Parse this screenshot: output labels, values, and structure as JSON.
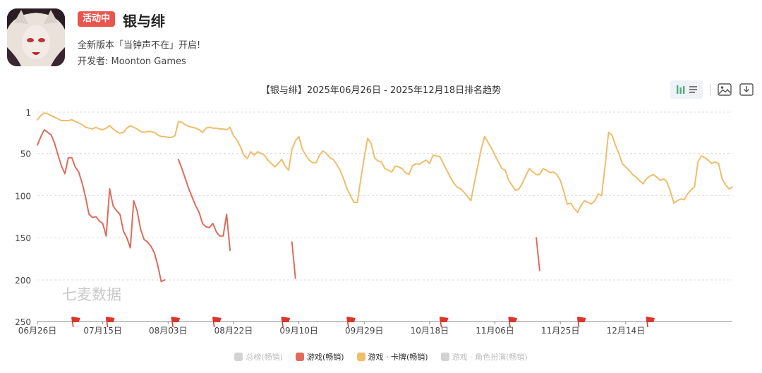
{
  "app": {
    "badge": "活动中",
    "name": "银与绯",
    "subtitle": "全新版本「当钟声不在」开启!",
    "developer": "开发者: Moonton Games"
  },
  "colors": {
    "red": "#e06b5c",
    "yellow": "#f0bd6a",
    "gray": "#d3d3d3",
    "badge": "#e8554e",
    "flag": "#d9362c"
  },
  "toolbar": {
    "bar_icon": "bar-chart-icon",
    "image_icon": "image-icon",
    "download_icon": "download-icon"
  },
  "watermark": "七麦数据",
  "chart_data": {
    "type": "line",
    "title": "【银与绯】2025年06月26日 - 2025年12月18日排名趋势",
    "y_ticks": [
      "1",
      "50",
      "100",
      "150",
      "200",
      "250"
    ],
    "y_reversed": true,
    "ylim": [
      1,
      250
    ],
    "x_labels": [
      "06月26日",
      "07月15日",
      "08月03日",
      "08月22日",
      "09月10日",
      "09月29日",
      "10月18日",
      "11月06日",
      "11月25日",
      "12月14日"
    ],
    "x_start": "2025-06-26",
    "x_end": "2025-12-18",
    "flag_days": [
      10,
      20,
      39,
      51,
      71,
      90,
      117,
      137,
      157,
      177
    ],
    "legend": [
      {
        "name": "总榜(畅销)",
        "color": "#d3d3d3",
        "active": false
      },
      {
        "name": "游戏(畅销)",
        "color": "#e06b5c",
        "active": true
      },
      {
        "name": "游戏 · 卡牌(畅销)",
        "color": "#f0bd6a",
        "active": true
      },
      {
        "name": "游戏 · 角色扮演(畅销)",
        "color": "#d3d3d3",
        "active": false
      }
    ],
    "series": [
      {
        "name": "游戏(畅销)",
        "color": "#e06b5c",
        "segments": [
          [
            [
              0,
              40
            ],
            [
              1,
              30
            ],
            [
              2,
              22
            ],
            [
              3,
              25
            ],
            [
              4,
              28
            ],
            [
              5,
              38
            ],
            [
              6,
              52
            ],
            [
              7,
              65
            ],
            [
              8,
              74
            ],
            [
              9,
              55
            ],
            [
              10,
              55
            ],
            [
              11,
              66
            ],
            [
              12,
              72
            ],
            [
              13,
              85
            ],
            [
              14,
              102
            ],
            [
              15,
              122
            ],
            [
              16,
              126
            ],
            [
              17,
              125
            ],
            [
              18,
              130
            ],
            [
              19,
              133
            ],
            [
              20,
              148
            ],
            [
              21,
              92
            ],
            [
              22,
              112
            ],
            [
              23,
              118
            ],
            [
              24,
              122
            ],
            [
              25,
              142
            ],
            [
              26,
              150
            ],
            [
              27,
              162
            ],
            [
              28,
              106
            ],
            [
              29,
              118
            ],
            [
              30,
              140
            ],
            [
              31,
              152
            ],
            [
              32,
              155
            ],
            [
              33,
              160
            ],
            [
              34,
              168
            ],
            [
              35,
              183
            ],
            [
              36,
              202
            ],
            [
              37,
              200
            ]
          ],
          [
            [
              41,
              57
            ],
            [
              42,
              68
            ],
            [
              43,
              80
            ],
            [
              44,
              92
            ],
            [
              45,
              102
            ],
            [
              46,
              112
            ],
            [
              47,
              120
            ],
            [
              48,
              133
            ],
            [
              49,
              137
            ],
            [
              50,
              138
            ],
            [
              51,
              133
            ],
            [
              52,
              143
            ],
            [
              53,
              148
            ],
            [
              54,
              148
            ],
            [
              55,
              122
            ],
            [
              56,
              165
            ]
          ],
          [
            [
              74,
              155
            ],
            [
              75,
              198
            ]
          ],
          [
            [
              145,
              150
            ],
            [
              146,
              189
            ]
          ]
        ]
      },
      {
        "name": "游戏 · 卡牌(畅销)",
        "color": "#f0bd6a",
        "segments": [
          [
            [
              0,
              10
            ],
            [
              1,
              5
            ],
            [
              2,
              2
            ],
            [
              3,
              3
            ],
            [
              4,
              5
            ],
            [
              5,
              7
            ],
            [
              6,
              9
            ],
            [
              7,
              11
            ],
            [
              8,
              11
            ],
            [
              9,
              11
            ],
            [
              10,
              10
            ],
            [
              11,
              12
            ],
            [
              12,
              14
            ],
            [
              13,
              16
            ],
            [
              14,
              19
            ],
            [
              15,
              20
            ],
            [
              16,
              21
            ],
            [
              17,
              19
            ],
            [
              18,
              21
            ],
            [
              19,
              22
            ],
            [
              20,
              20
            ],
            [
              21,
              17
            ],
            [
              22,
              21
            ],
            [
              23,
              24
            ],
            [
              24,
              26
            ],
            [
              25,
              25
            ],
            [
              26,
              20
            ],
            [
              27,
              17
            ],
            [
              28,
              19
            ],
            [
              29,
              21
            ],
            [
              30,
              24
            ],
            [
              31,
              25
            ],
            [
              32,
              24
            ],
            [
              33,
              24
            ],
            [
              34,
              25
            ],
            [
              35,
              28
            ],
            [
              36,
              30
            ],
            [
              37,
              30
            ],
            [
              38,
              31
            ],
            [
              39,
              31
            ],
            [
              40,
              29
            ],
            [
              41,
              12
            ],
            [
              42,
              13
            ],
            [
              43,
              16
            ],
            [
              44,
              18
            ],
            [
              45,
              19
            ],
            [
              46,
              20
            ],
            [
              47,
              22
            ],
            [
              48,
              25
            ],
            [
              49,
              20
            ],
            [
              50,
              19
            ],
            [
              51,
              20
            ],
            [
              52,
              20
            ],
            [
              53,
              21
            ],
            [
              54,
              21
            ],
            [
              55,
              22
            ],
            [
              56,
              19
            ],
            [
              57,
              29
            ],
            [
              58,
              34
            ],
            [
              59,
              42
            ],
            [
              60,
              52
            ],
            [
              61,
              56
            ],
            [
              62,
              48
            ],
            [
              63,
              52
            ],
            [
              64,
              48
            ],
            [
              65,
              50
            ],
            [
              66,
              52
            ],
            [
              67,
              58
            ],
            [
              68,
              62
            ],
            [
              69,
              66
            ],
            [
              70,
              62
            ],
            [
              71,
              57
            ],
            [
              72,
              65
            ],
            [
              73,
              70
            ],
            [
              74,
              45
            ],
            [
              75,
              35
            ],
            [
              76,
              30
            ],
            [
              77,
              45
            ],
            [
              78,
              52
            ],
            [
              79,
              58
            ],
            [
              80,
              61
            ],
            [
              81,
              61
            ],
            [
              82,
              52
            ],
            [
              83,
              47
            ],
            [
              84,
              50
            ],
            [
              85,
              55
            ],
            [
              86,
              57
            ],
            [
              87,
              63
            ],
            [
              88,
              70
            ],
            [
              89,
              80
            ],
            [
              90,
              92
            ],
            [
              91,
              100
            ],
            [
              92,
              108
            ],
            [
              93,
              108
            ],
            [
              94,
              80
            ],
            [
              95,
              55
            ],
            [
              96,
              32
            ],
            [
              97,
              38
            ],
            [
              98,
              55
            ],
            [
              99,
              59
            ],
            [
              100,
              60
            ],
            [
              101,
              68
            ],
            [
              102,
              70
            ],
            [
              103,
              72
            ],
            [
              104,
              65
            ],
            [
              105,
              66
            ],
            [
              106,
              68
            ],
            [
              107,
              73
            ],
            [
              108,
              75
            ],
            [
              109,
              65
            ],
            [
              110,
              62
            ],
            [
              111,
              63
            ],
            [
              112,
              60
            ],
            [
              113,
              58
            ],
            [
              114,
              62
            ],
            [
              115,
              52
            ],
            [
              116,
              53
            ],
            [
              117,
              54
            ],
            [
              118,
              62
            ],
            [
              119,
              70
            ],
            [
              120,
              78
            ],
            [
              121,
              85
            ],
            [
              122,
              90
            ],
            [
              123,
              92
            ],
            [
              124,
              96
            ],
            [
              125,
              101
            ],
            [
              126,
              106
            ],
            [
              127,
              85
            ],
            [
              128,
              65
            ],
            [
              129,
              45
            ],
            [
              130,
              30
            ],
            [
              131,
              37
            ],
            [
              132,
              44
            ],
            [
              133,
              52
            ],
            [
              134,
              60
            ],
            [
              135,
              68
            ],
            [
              136,
              70
            ],
            [
              137,
              82
            ],
            [
              138,
              88
            ],
            [
              139,
              94
            ],
            [
              140,
              92
            ],
            [
              141,
              85
            ],
            [
              142,
              76
            ],
            [
              143,
              68
            ],
            [
              144,
              72
            ],
            [
              145,
              75
            ],
            [
              146,
              75
            ],
            [
              147,
              68
            ],
            [
              148,
              70
            ],
            [
              149,
              73
            ],
            [
              150,
              72
            ],
            [
              151,
              75
            ],
            [
              152,
              82
            ],
            [
              153,
              95
            ],
            [
              154,
              110
            ],
            [
              155,
              109
            ],
            [
              156,
              115
            ],
            [
              157,
              120
            ],
            [
              158,
              112
            ],
            [
              159,
              106
            ],
            [
              160,
              108
            ],
            [
              161,
              110
            ],
            [
              162,
              106
            ],
            [
              163,
              98
            ],
            [
              164,
              100
            ],
            [
              165,
              65
            ],
            [
              166,
              25
            ],
            [
              167,
              28
            ],
            [
              168,
              40
            ],
            [
              169,
              50
            ],
            [
              170,
              62
            ],
            [
              171,
              66
            ],
            [
              172,
              70
            ],
            [
              173,
              75
            ],
            [
              174,
              78
            ],
            [
              175,
              82
            ],
            [
              176,
              86
            ],
            [
              177,
              80
            ],
            [
              178,
              77
            ],
            [
              179,
              75
            ],
            [
              180,
              78
            ],
            [
              181,
              82
            ],
            [
              182,
              80
            ],
            [
              183,
              84
            ],
            [
              184,
              95
            ],
            [
              185,
              109
            ],
            [
              186,
              106
            ],
            [
              187,
              104
            ],
            [
              188,
              105
            ],
            [
              189,
              98
            ],
            [
              190,
              93
            ],
            [
              191,
              90
            ],
            [
              192,
              60
            ],
            [
              193,
              53
            ],
            [
              194,
              55
            ],
            [
              195,
              58
            ],
            [
              196,
              62
            ],
            [
              197,
              60
            ],
            [
              198,
              62
            ],
            [
              199,
              80
            ],
            [
              200,
              87
            ],
            [
              201,
              92
            ],
            [
              202,
              90
            ]
          ]
        ]
      }
    ]
  }
}
